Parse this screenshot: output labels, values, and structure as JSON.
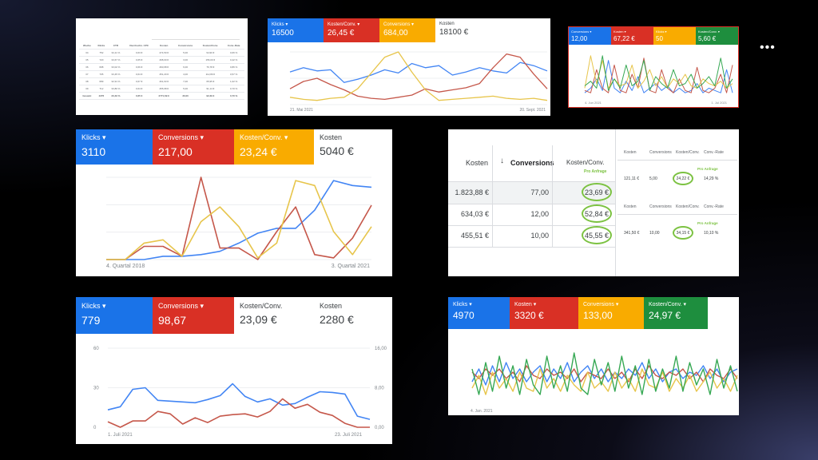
{
  "menu_icon": "more-horizontal-icon",
  "colors": {
    "blue": "#4285f4",
    "red": "#c5574a",
    "yellow": "#e7c54b",
    "green": "#36a853",
    "highlight": "#7cc242"
  },
  "panel_table_small": {
    "headers": [
      "Woche",
      "Klicks",
      "CTR",
      "Durchschn. CPC",
      "Kosten",
      "Conversions",
      "Kosten/Conv.",
      "Conv.-Rate"
    ],
    "rows": [
      [
        "34",
        "752",
        "34,11 %",
        "0,63 €",
        "474,50 €",
        "5,00",
        "94,90 €",
        "0,66 %"
      ],
      [
        "35",
        "720",
        "33,67 %",
        "0,65 €",
        "468,00 €",
        "3,00",
        "156,00 €",
        "0,42 %"
      ],
      [
        "36",
        "698",
        "33,02 %",
        "0,66 €",
        "460,68 €",
        "6,00",
        "76,78 €",
        "0,86 %"
      ],
      [
        "37",
        "705",
        "33,45 %",
        "0,64 €",
        "451,20 €",
        "4,00",
        "112,80 €",
        "0,57 %"
      ],
      [
        "38",
        "689",
        "32,91 %",
        "0,67 €",
        "461,63 €",
        "7,00",
        "65,95 €",
        "1,02 %"
      ],
      [
        "39",
        "712",
        "33,80 %",
        "0,64 €",
        "455,68 €",
        "5,00",
        "91,14 €",
        "0,70 %"
      ]
    ],
    "total_row": [
      "Gesamt",
      "4276",
      "33,49 %",
      "0,65 €",
      "2771,69 €",
      "30,00",
      "92,39 €",
      "0,70 %"
    ]
  },
  "panel_a": {
    "tiles": [
      {
        "label": "Klicks",
        "value": "16500",
        "color": "blue"
      },
      {
        "label": "Kosten/Conv.",
        "value": "26,45 €",
        "color": "red"
      },
      {
        "label": "Conversions",
        "value": "684,00",
        "color": "yellow"
      },
      {
        "label": "Kosten",
        "value": "18100 €",
        "color": "plain"
      }
    ],
    "x_start": "21. Mai 2021",
    "x_end": "20. Sept. 2021"
  },
  "panel_b": {
    "tiles": [
      {
        "label": "Conversions",
        "value": "12,00",
        "color": "blue"
      },
      {
        "label": "Kosten",
        "value": "67,22 €",
        "color": "red"
      },
      {
        "label": "Klicks",
        "value": "50",
        "color": "yellow"
      },
      {
        "label": "Kosten/Conv.",
        "value": "5,60 €",
        "color": "green"
      }
    ],
    "x_start": "4. Jun 2021",
    "x_end": "1. Jul 2021"
  },
  "panel_c": {
    "tiles": [
      {
        "label": "Klicks",
        "value": "3110",
        "color": "blue"
      },
      {
        "label": "Conversions",
        "value": "217,00",
        "color": "red"
      },
      {
        "label": "Kosten/Conv.",
        "value": "23,24 €",
        "color": "yellow"
      },
      {
        "label": "Kosten",
        "value": "5040 €",
        "color": "plain"
      }
    ],
    "x_start": "4. Quartal 2018",
    "x_end": "3. Quartal 2021"
  },
  "panel_table_big": {
    "headers": [
      "Kosten",
      "Conversions",
      "Kosten/Conv."
    ],
    "annotation": "Pro Anfrage",
    "rows": [
      [
        "1.823,88 €",
        "77,00",
        "23,69 €"
      ],
      [
        "634,03 €",
        "12,00",
        "52,84 €"
      ],
      [
        "455,51 €",
        "10,00",
        "45,55 €"
      ]
    ],
    "side_headers": [
      "Kosten",
      "Conversions",
      "Kosten/Conv.",
      "Conv.-Rate"
    ],
    "side_rows": [
      [
        "121,11 €",
        "5,00",
        "24,22 €",
        "14,29 %"
      ],
      [
        "341,50 €",
        "10,00",
        "34,15 €",
        "10,10 %"
      ]
    ]
  },
  "panel_d": {
    "tiles": [
      {
        "label": "Klicks",
        "value": "779",
        "color": "blue"
      },
      {
        "label": "Conversions",
        "value": "98,67",
        "color": "red"
      },
      {
        "label": "Kosten/Conv.",
        "value": "23,09 €",
        "color": "plain"
      },
      {
        "label": "Kosten",
        "value": "2280 €",
        "color": "plain"
      }
    ],
    "y_left": [
      "60",
      "30",
      "0"
    ],
    "y_right": [
      "16,00",
      "8,00",
      "0,00"
    ],
    "x_start": "1. Juli 2021",
    "x_end": "23. Juli 2021"
  },
  "panel_e": {
    "tiles": [
      {
        "label": "Klicks",
        "value": "4970",
        "color": "blue"
      },
      {
        "label": "Kosten",
        "value": "3320 €",
        "color": "red"
      },
      {
        "label": "Conversions",
        "value": "133,00",
        "color": "yellow"
      },
      {
        "label": "Kosten/Conv.",
        "value": "24,97 €",
        "color": "green"
      }
    ],
    "x_start": "4. Jan. 2021"
  },
  "chart_data": [
    {
      "type": "line",
      "panel": "panel_a",
      "series": [
        {
          "color": "blue",
          "values": [
            62,
            70,
            64,
            66,
            42,
            48,
            56,
            66,
            60,
            78,
            70,
            74,
            56,
            62,
            70,
            64,
            60,
            80,
            74,
            64
          ]
        },
        {
          "color": "red",
          "values": [
            30,
            44,
            50,
            38,
            28,
            16,
            12,
            10,
            14,
            18,
            30,
            24,
            28,
            32,
            40,
            70,
            96,
            90,
            58,
            30
          ]
        },
        {
          "color": "yellow",
          "values": [
            14,
            10,
            8,
            12,
            14,
            30,
            60,
            90,
            100,
            62,
            28,
            8,
            10,
            12,
            14,
            16,
            12,
            10,
            12,
            8
          ]
        }
      ]
    },
    {
      "type": "line",
      "panel": "panel_b",
      "series": [
        {
          "color": "blue",
          "values": [
            10,
            20,
            40,
            15,
            80,
            20,
            10,
            35,
            15,
            45,
            10,
            20,
            30,
            15,
            25,
            10,
            20,
            10,
            15,
            30,
            10,
            20,
            15,
            10,
            60,
            10
          ]
        },
        {
          "color": "red",
          "values": [
            15,
            10,
            60,
            20,
            10,
            70,
            15,
            10,
            50,
            20,
            85,
            15,
            10,
            60,
            20,
            10,
            40,
            15,
            10,
            65,
            15,
            10,
            20,
            50,
            10,
            70
          ]
        },
        {
          "color": "yellow",
          "values": [
            20,
            90,
            30,
            80,
            20,
            40,
            25,
            30,
            70,
            20,
            35,
            60,
            25,
            45,
            20,
            40,
            30,
            50,
            25,
            20,
            40,
            30,
            25,
            35,
            20,
            30
          ]
        },
        {
          "color": "green",
          "values": [
            25,
            35,
            20,
            90,
            15,
            40,
            20,
            70,
            25,
            35,
            80,
            15,
            45,
            30,
            20,
            60,
            25,
            30,
            50,
            20,
            30,
            45,
            25,
            85,
            20,
            40
          ]
        }
      ]
    },
    {
      "type": "line",
      "panel": "panel_c",
      "series": [
        {
          "color": "blue",
          "values": [
            0,
            0,
            0,
            4,
            4,
            6,
            10,
            20,
            32,
            38,
            38,
            60,
            96,
            90,
            88
          ]
        },
        {
          "color": "red",
          "values": [
            0,
            0,
            16,
            16,
            4,
            100,
            14,
            14,
            0,
            34,
            64,
            6,
            2,
            26,
            66
          ]
        },
        {
          "color": "yellow",
          "values": [
            0,
            0,
            20,
            24,
            4,
            46,
            64,
            40,
            2,
            20,
            96,
            90,
            34,
            6,
            40
          ]
        }
      ]
    },
    {
      "type": "line",
      "panel": "panel_d",
      "series": [
        {
          "color": "blue",
          "values": [
            22,
            26,
            48,
            50,
            34,
            33,
            32,
            31,
            35,
            40,
            55,
            39,
            32,
            36,
            28,
            30,
            38,
            45,
            44,
            42,
            14,
            10
          ]
        },
        {
          "color": "red",
          "values": [
            7,
            0,
            8,
            8,
            20,
            17,
            4,
            12,
            6,
            14,
            16,
            17,
            13,
            20,
            36,
            24,
            29,
            19,
            15,
            5,
            0,
            0
          ]
        }
      ]
    },
    {
      "type": "line",
      "panel": "panel_e",
      "series": [
        {
          "color": "blue",
          "values": [
            40,
            60,
            35,
            65,
            40,
            70,
            45,
            60,
            40,
            55,
            65,
            40,
            60,
            45,
            70,
            40,
            55,
            65,
            45,
            60,
            40,
            55,
            45,
            60,
            50,
            70,
            45,
            60,
            40,
            55,
            60,
            45,
            55,
            50,
            65,
            45,
            60,
            40,
            55,
            60
          ]
        },
        {
          "color": "red",
          "values": [
            55,
            45,
            60,
            50,
            60,
            45,
            55,
            40,
            65,
            50,
            45,
            60,
            50,
            55,
            45,
            60,
            40,
            55,
            50,
            45,
            60,
            45,
            55,
            40,
            60,
            45,
            65,
            50,
            45,
            55,
            50,
            60,
            45,
            55,
            40,
            60,
            50,
            45,
            60,
            45
          ]
        },
        {
          "color": "yellow",
          "values": [
            30,
            50,
            20,
            55,
            30,
            45,
            25,
            55,
            30,
            25,
            60,
            30,
            45,
            25,
            50,
            35,
            25,
            55,
            30,
            40,
            25,
            55,
            30,
            45,
            25,
            60,
            35,
            30,
            55,
            25,
            45,
            30,
            50,
            25,
            40,
            55,
            30,
            45,
            25,
            50
          ]
        },
        {
          "color": "green",
          "values": [
            60,
            20,
            70,
            25,
            80,
            30,
            65,
            20,
            75,
            35,
            20,
            80,
            30,
            65,
            25,
            85,
            30,
            20,
            75,
            35,
            70,
            25,
            80,
            30,
            65,
            20,
            75,
            25,
            60,
            30,
            80,
            25,
            70,
            35,
            60,
            20,
            75,
            30,
            65,
            25
          ]
        }
      ]
    }
  ]
}
